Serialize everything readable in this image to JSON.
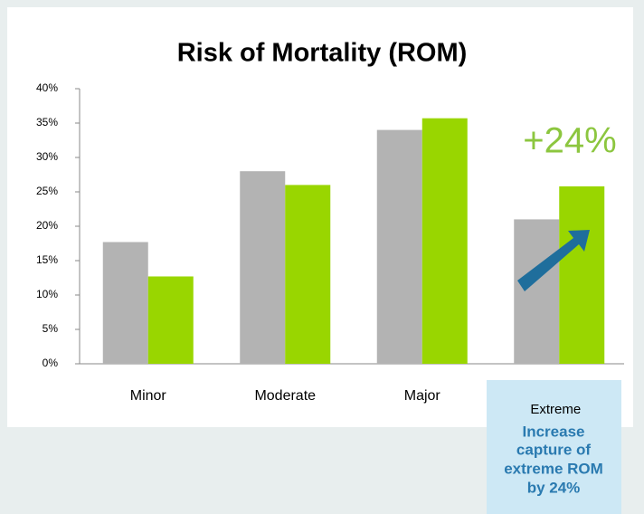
{
  "chart_data": {
    "type": "bar",
    "title": "Risk of Mortality (ROM)",
    "categories": [
      "Minor",
      "Moderate",
      "Major",
      "Extreme"
    ],
    "series": [
      {
        "color": "#b3b3b3",
        "values": [
          17.7,
          28.0,
          34.0,
          21.0
        ]
      },
      {
        "color": "#99d600",
        "values": [
          12.7,
          26.0,
          35.7,
          25.8
        ]
      }
    ],
    "ylim": [
      0,
      40
    ],
    "yticks": [
      {
        "value": 0,
        "label": "0%"
      },
      {
        "value": 5,
        "label": "5%"
      },
      {
        "value": 10,
        "label": "10%"
      },
      {
        "value": 15,
        "label": "15%"
      },
      {
        "value": 20,
        "label": "20%"
      },
      {
        "value": 25,
        "label": "25%"
      },
      {
        "value": 30,
        "label": "30%"
      },
      {
        "value": 35,
        "label": "35%"
      },
      {
        "value": 40,
        "label": "40%"
      }
    ],
    "grid": false,
    "annotation": "+24%",
    "callout": [
      "Increase",
      "capture of",
      "extreme ROM",
      "by 24%"
    ]
  }
}
